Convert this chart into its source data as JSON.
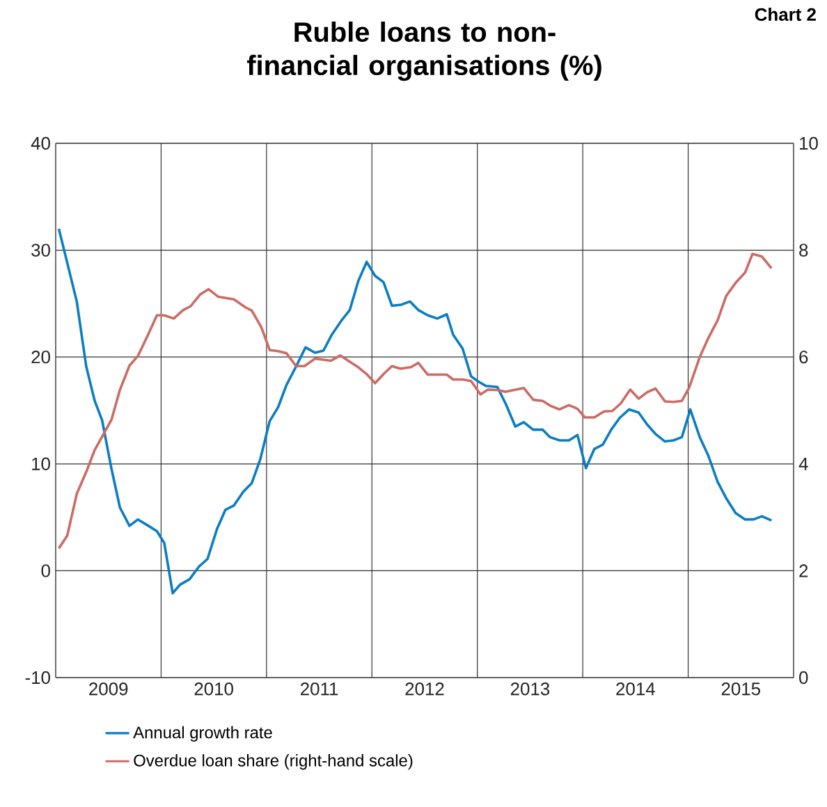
{
  "chart_data": {
    "type": "line",
    "title": "Ruble loans to non-financial organisations (%)",
    "annotations": [
      "Chart 2"
    ],
    "xlim": [
      2009,
      2016
    ],
    "xticks": [
      {
        "value": 2009.5,
        "label": "2009"
      },
      {
        "value": 2010,
        "label": null
      },
      {
        "value": 2010.5,
        "label": "2010"
      },
      {
        "value": 2011,
        "label": null
      },
      {
        "value": 2011.5,
        "label": "2011"
      },
      {
        "value": 2012,
        "label": null
      },
      {
        "value": 2012.5,
        "label": "2012"
      },
      {
        "value": 2013,
        "label": null
      },
      {
        "value": 2013.5,
        "label": "2013"
      },
      {
        "value": 2014,
        "label": null
      },
      {
        "value": 2014.5,
        "label": "2014"
      },
      {
        "value": 2015,
        "label": null
      },
      {
        "value": 2015.5,
        "label": "2015"
      }
    ],
    "ylim": [
      -10,
      40
    ],
    "yticks": [
      -10,
      0,
      10,
      20,
      30,
      40
    ],
    "y2lim": [
      0,
      10
    ],
    "y2ticks": [
      0,
      2,
      4,
      6,
      8,
      10
    ],
    "grid": true,
    "legend": "bottom",
    "line_style": "solid",
    "series": [
      {
        "name": "Annual growth rate",
        "color": "#0a7dc4",
        "x": [
          2009.03,
          2009.2,
          2009.29,
          2009.37,
          2009.44,
          2009.53,
          2009.61,
          2009.7,
          2009.78,
          2009.88,
          2009.96,
          2010.03,
          2010.11,
          2010.18,
          2010.27,
          2010.36,
          2010.44,
          2010.53,
          2010.61,
          2010.69,
          2010.78,
          2010.86,
          2010.94,
          2011.03,
          2011.11,
          2011.19,
          2011.28,
          2011.37,
          2011.46,
          2011.54,
          2011.62,
          2011.71,
          2011.79,
          2011.87,
          2011.95,
          2012.03,
          2012.11,
          2012.19,
          2012.28,
          2012.36,
          2012.44,
          2012.53,
          2012.62,
          2012.71,
          2012.77,
          2012.86,
          2012.94,
          2013.01,
          2013.08,
          2013.19,
          2013.27,
          2013.36,
          2013.44,
          2013.53,
          2013.62,
          2013.69,
          2013.78,
          2013.87,
          2013.95,
          2014.03,
          2014.11,
          2014.19,
          2014.27,
          2014.35,
          2014.44,
          2014.53,
          2014.61,
          2014.69,
          2014.78,
          2014.86,
          2014.94,
          2015.02,
          2015.11,
          2015.19,
          2015.28,
          2015.36,
          2015.45,
          2015.54,
          2015.62,
          2015.7,
          2015.79
        ],
        "values": [
          32.0,
          25.2,
          19.1,
          15.9,
          14.1,
          9.5,
          5.9,
          4.2,
          4.8,
          4.2,
          3.7,
          2.6,
          -2.1,
          -1.3,
          -0.8,
          0.4,
          1.1,
          3.9,
          5.7,
          6.1,
          7.4,
          8.2,
          10.4,
          14.0,
          15.3,
          17.4,
          19.1,
          20.9,
          20.4,
          20.6,
          22.1,
          23.4,
          24.4,
          27.1,
          28.9,
          27.6,
          27.0,
          24.8,
          24.9,
          25.2,
          24.4,
          23.9,
          23.6,
          24.0,
          22.1,
          20.8,
          18.2,
          17.7,
          17.3,
          17.2,
          15.6,
          13.5,
          13.9,
          13.2,
          13.2,
          12.5,
          12.2,
          12.2,
          12.7,
          9.6,
          11.4,
          11.8,
          13.2,
          14.3,
          15.1,
          14.8,
          13.7,
          12.8,
          12.1,
          12.2,
          12.5,
          15.1,
          12.5,
          10.8,
          8.3,
          6.8,
          5.4,
          4.8,
          4.8,
          5.1,
          4.7
        ]
      },
      {
        "name": "Overdue loan share (right-hand scale)",
        "color": "#cc6b64",
        "axis": "y2",
        "x": [
          2009.03,
          2009.11,
          2009.2,
          2009.29,
          2009.37,
          2009.53,
          2009.61,
          2009.7,
          2009.78,
          2009.87,
          2009.96,
          2010.03,
          2010.12,
          2010.21,
          2010.28,
          2010.37,
          2010.45,
          2010.54,
          2010.69,
          2010.8,
          2010.86,
          2010.95,
          2011.03,
          2011.11,
          2011.19,
          2011.28,
          2011.36,
          2011.46,
          2011.61,
          2011.7,
          2011.79,
          2011.87,
          2011.95,
          2012.03,
          2012.11,
          2012.19,
          2012.27,
          2012.37,
          2012.44,
          2012.53,
          2012.71,
          2012.77,
          2012.86,
          2012.94,
          2013.03,
          2013.1,
          2013.19,
          2013.27,
          2013.44,
          2013.53,
          2013.62,
          2013.69,
          2013.78,
          2013.87,
          2013.95,
          2014.02,
          2014.11,
          2014.2,
          2014.28,
          2014.36,
          2014.45,
          2014.53,
          2014.61,
          2014.69,
          2014.78,
          2014.86,
          2014.94,
          2015.01,
          2015.11,
          2015.19,
          2015.28,
          2015.36,
          2015.45,
          2015.54,
          2015.61,
          2015.7,
          2015.79
        ],
        "values": [
          2.42,
          2.66,
          3.44,
          3.85,
          4.26,
          4.83,
          5.39,
          5.84,
          6.02,
          6.39,
          6.78,
          6.78,
          6.72,
          6.88,
          6.95,
          7.17,
          7.27,
          7.13,
          7.08,
          6.93,
          6.87,
          6.56,
          6.13,
          6.11,
          6.07,
          5.83,
          5.83,
          5.97,
          5.93,
          6.03,
          5.91,
          5.81,
          5.68,
          5.51,
          5.68,
          5.83,
          5.78,
          5.81,
          5.89,
          5.67,
          5.67,
          5.58,
          5.58,
          5.55,
          5.3,
          5.39,
          5.38,
          5.35,
          5.42,
          5.2,
          5.18,
          5.09,
          5.02,
          5.1,
          5.03,
          4.87,
          4.87,
          4.98,
          4.99,
          5.13,
          5.39,
          5.22,
          5.34,
          5.41,
          5.17,
          5.16,
          5.18,
          5.43,
          6.0,
          6.35,
          6.69,
          7.14,
          7.39,
          7.58,
          7.93,
          7.88,
          7.66
        ]
      }
    ]
  }
}
